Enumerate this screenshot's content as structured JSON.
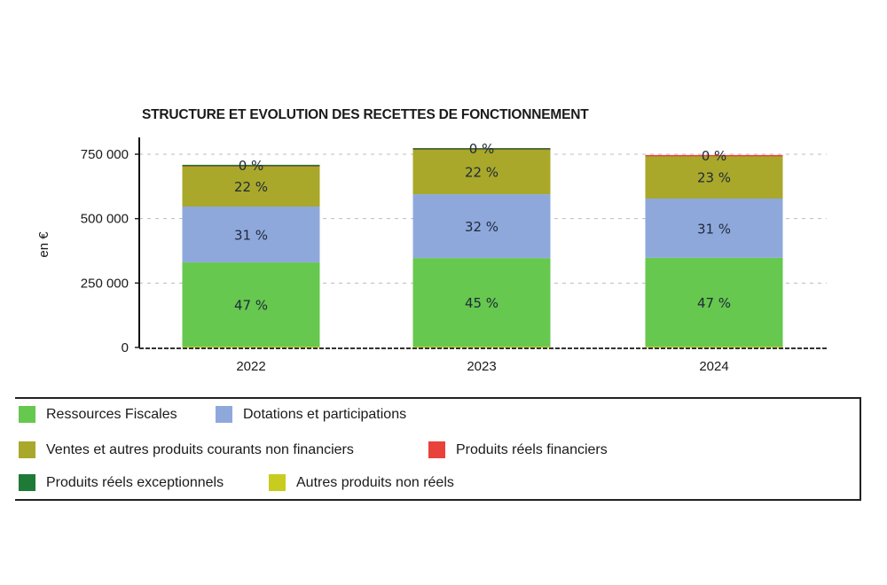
{
  "chart_data": {
    "type": "bar",
    "stacked": true,
    "title": "STRUCTURE ET EVOLUTION DES RECETTES DE FONCTIONNEMENT",
    "xlabel": "",
    "ylabel": "en €",
    "ylim": [
      0,
      800000
    ],
    "yticks": [
      0,
      250000,
      500000,
      750000
    ],
    "ytick_labels": [
      "0",
      "250 000",
      "500 000",
      "750 000"
    ],
    "grid": true,
    "legend_position": "bottom",
    "categories": [
      "2022",
      "2023",
      "2024"
    ],
    "series": [
      {
        "name": "Autres produits non réels",
        "color": "#c8cc1e",
        "values": [
          3000,
          3000,
          3000
        ],
        "labels": [
          "",
          "",
          ""
        ]
      },
      {
        "name": "Ressources Fiscales",
        "color": "#66c84e",
        "values": [
          327000,
          344000,
          345000
        ],
        "labels": [
          "47 %",
          "45 %",
          "47 %"
        ]
      },
      {
        "name": "Dotations et participations",
        "color": "#8fa8dc",
        "values": [
          217000,
          248000,
          230000
        ],
        "labels": [
          "31 %",
          "32 %",
          "31 %"
        ]
      },
      {
        "name": "Ventes et autres produits courants non financiers",
        "color": "#a9a82a",
        "values": [
          158000,
          176000,
          167000
        ],
        "labels": [
          "22 %",
          "22 %",
          "23 %"
        ]
      },
      {
        "name": "Produits réels financiers",
        "color": "#e8423a",
        "values": [
          2000,
          1000,
          2000
        ],
        "labels": [
          "",
          "",
          "0 %"
        ]
      },
      {
        "name": "Produits réels exceptionnels",
        "color": "#1e7a36",
        "values": [
          2000,
          2000,
          0
        ],
        "labels": [
          "0 %",
          "0 %",
          ""
        ]
      }
    ]
  },
  "legend": {
    "items": [
      {
        "label": "Ressources Fiscales",
        "color": "#66c84e"
      },
      {
        "label": "Dotations et participations",
        "color": "#8fa8dc"
      },
      {
        "label": "Ventes et autres produits courants non financiers",
        "color": "#a9a82a"
      },
      {
        "label": "Produits réels financiers",
        "color": "#e8423a"
      },
      {
        "label": "Produits réels exceptionnels",
        "color": "#1e7a36"
      },
      {
        "label": "Autres produits non réels",
        "color": "#c8cc1e"
      }
    ]
  }
}
